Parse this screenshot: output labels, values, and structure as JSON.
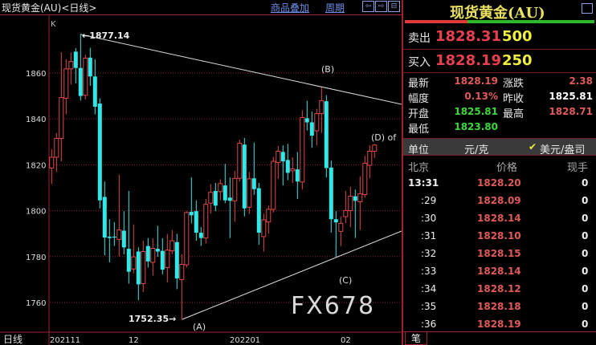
{
  "header": {
    "title": "现货黄金(AU)<日线>",
    "overlay_link": "商品叠加",
    "period_link": "周期",
    "nav_buttons": [
      "⇦",
      "⇨",
      "⊟"
    ]
  },
  "chart": {
    "indicator_label": "K",
    "period_label": "日线",
    "high_label": "1877.14",
    "low_label": "1752.35",
    "wave_labels": [
      "(A)",
      "(B)",
      "(C)",
      "(D) of"
    ],
    "y_ticks": [
      "1860",
      "1840",
      "1820",
      "1800",
      "1780",
      "1760"
    ],
    "x_ticks": [
      "202111",
      "12",
      "202201",
      "02"
    ]
  },
  "chart_data": {
    "type": "candlestick",
    "ylim": [
      1745,
      1885
    ],
    "y_ticks": [
      1860,
      1840,
      1820,
      1800,
      1780,
      1760
    ],
    "x_ticks": [
      "202111",
      "12",
      "202201",
      "02"
    ],
    "grid": true,
    "colors": {
      "up": "#e04848",
      "down": "#30e8e8"
    },
    "ohlc": [
      [
        1818.6,
        1826.8,
        1811.6,
        1823.3
      ],
      [
        1823.3,
        1833.8,
        1817,
        1831.5
      ],
      [
        1831.5,
        1869,
        1821.5,
        1849.3
      ],
      [
        1849,
        1866,
        1842,
        1861.8
      ],
      [
        1861.8,
        1869,
        1855,
        1865
      ],
      [
        1869.3,
        1870.8,
        1855.5,
        1862.2
      ],
      [
        1862.2,
        1877.14,
        1848,
        1850
      ],
      [
        1850.3,
        1868,
        1848.5,
        1866.5
      ],
      [
        1866.7,
        1871,
        1854.4,
        1858.5
      ],
      [
        1858.5,
        1866,
        1842,
        1845.3
      ],
      [
        1846.7,
        1849,
        1801,
        1804.5
      ],
      [
        1806,
        1812.7,
        1780.5,
        1788.3
      ],
      [
        1788.7,
        1796.3,
        1777.5,
        1788.1
      ],
      [
        1788.7,
        1795,
        1784.6,
        1788.3
      ],
      [
        1787.5,
        1815.7,
        1780,
        1791.6
      ],
      [
        1791.3,
        1799.8,
        1781,
        1784
      ],
      [
        1783.4,
        1808.6,
        1768.2,
        1773.4
      ],
      [
        1774.6,
        1794,
        1772.8,
        1779.9
      ],
      [
        1782.2,
        1784,
        1761,
        1767.9
      ],
      [
        1768.2,
        1786.9,
        1764.6,
        1782.2
      ],
      [
        1784.6,
        1788.1,
        1775.2,
        1777.9
      ],
      [
        1777.5,
        1788,
        1771.7,
        1783.6
      ],
      [
        1783.4,
        1793.4,
        1779.9,
        1782.2
      ],
      [
        1782.5,
        1788,
        1772.3,
        1774.3
      ],
      [
        1775.2,
        1789.9,
        1768.8,
        1782.8
      ],
      [
        1782.5,
        1791.6,
        1781.1,
        1786.9
      ],
      [
        1786.3,
        1789.9,
        1765.8,
        1770.5
      ],
      [
        1770,
        1781,
        1752.35,
        1776.6
      ],
      [
        1776.4,
        1799.8,
        1775.2,
        1799.2
      ],
      [
        1799.5,
        1814.5,
        1794.5,
        1798
      ],
      [
        1799.8,
        1804.5,
        1786.9,
        1790.4
      ],
      [
        1790.4,
        1792.8,
        1784.6,
        1788.1
      ],
      [
        1788.1,
        1805.1,
        1785.7,
        1802.8
      ],
      [
        1803.3,
        1811.6,
        1798.7,
        1808
      ],
      [
        1808.6,
        1812.1,
        1799.8,
        1802.2
      ],
      [
        1808.3,
        1813.7,
        1804.5,
        1811.8
      ],
      [
        1811,
        1820.4,
        1803.3,
        1804.5
      ],
      [
        1805.7,
        1814.5,
        1788.1,
        1804.3
      ],
      [
        1804.3,
        1817.4,
        1795.1,
        1814.1
      ],
      [
        1814.1,
        1830.9,
        1812.7,
        1829.4
      ],
      [
        1828.8,
        1831.7,
        1797.5,
        1801
      ],
      [
        1801.5,
        1816.8,
        1798.5,
        1813.9
      ],
      [
        1814.1,
        1829.7,
        1806.9,
        1809.4
      ],
      [
        1809.8,
        1812.1,
        1785.2,
        1790.4
      ],
      [
        1788.7,
        1798.7,
        1782.2,
        1796
      ],
      [
        1795.1,
        1802.2,
        1790,
        1800.6
      ],
      [
        1800.6,
        1823.5,
        1799.2,
        1821.5
      ],
      [
        1821,
        1828.2,
        1813.9,
        1825.9
      ],
      [
        1825.6,
        1828.5,
        1811,
        1821.5
      ],
      [
        1822.1,
        1829.1,
        1813.3,
        1816.5
      ],
      [
        1817.4,
        1823.3,
        1812.1,
        1818.2
      ],
      [
        1818,
        1825.6,
        1805.1,
        1812.7
      ],
      [
        1812.5,
        1843.8,
        1809.2,
        1840.6
      ],
      [
        1840.3,
        1847.9,
        1835,
        1838.5
      ],
      [
        1838.5,
        1843.2,
        1827.4,
        1832.7
      ],
      [
        1834.8,
        1844.4,
        1828.5,
        1842.3
      ],
      [
        1842.3,
        1853.8,
        1833.9,
        1847.9
      ],
      [
        1847.7,
        1850.3,
        1814.5,
        1818.6
      ],
      [
        1818.8,
        1821.9,
        1790.4,
        1796.3
      ],
      [
        1796.3,
        1799.8,
        1779.9,
        1794.9
      ],
      [
        1791,
        1797.5,
        1784.6,
        1794.5
      ],
      [
        1797.4,
        1808.6,
        1794.5,
        1800.1
      ],
      [
        1800,
        1810.4,
        1792.8,
        1806.3
      ],
      [
        1806.3,
        1809.2,
        1788.1,
        1804.3
      ],
      [
        1803.9,
        1815,
        1791.6,
        1807.4
      ],
      [
        1807,
        1823.9,
        1805.7,
        1820.7
      ],
      [
        1819.8,
        1828.5,
        1814.1,
        1825.9
      ],
      [
        1825.9,
        1829.1,
        1823,
        1828.6
      ]
    ]
  },
  "quote": {
    "title": "现货黄金(AU)",
    "sell_label": "卖出",
    "sell_price": "1828.31",
    "sell_vol": "500",
    "buy_label": "买入",
    "buy_price": "1828.19",
    "buy_vol": "250",
    "stats": [
      {
        "label": "最新",
        "value": "1828.19",
        "color": "#e05a5a"
      },
      {
        "label": "涨跌",
        "value": "2.38",
        "color": "#e05a5a"
      },
      {
        "label": "幅度",
        "value": "0.13%",
        "color": "#e05a5a"
      },
      {
        "label": "昨收",
        "value": "1825.81",
        "color": "#ffffff"
      },
      {
        "label": "开盘",
        "value": "1825.81",
        "color": "#3ad83a"
      },
      {
        "label": "最高",
        "value": "1828.71",
        "color": "#e05a5a"
      },
      {
        "label": "最低",
        "value": "1823.80",
        "color": "#3ad83a"
      }
    ],
    "unit_label": "单位",
    "unit_option1": "元/克",
    "unit_option2": "美元/盎司",
    "bid_ratio": 0.33
  },
  "ticks": {
    "headers": [
      "北京",
      "价格",
      "现手"
    ],
    "rows": [
      [
        "13:31",
        "1828.20",
        "0"
      ],
      [
        ":29",
        "1828.09",
        "0"
      ],
      [
        ":30",
        "1828.14",
        "0"
      ],
      [
        ":31",
        "1828.10",
        "0"
      ],
      [
        ":32",
        "1828.15",
        "0"
      ],
      [
        ":33",
        "1828.14",
        "0"
      ],
      [
        ":34",
        "1828.12",
        "0"
      ],
      [
        ":35",
        "1828.18",
        "0"
      ],
      [
        ":36",
        "1828.19",
        "0"
      ]
    ],
    "tab": "笔"
  },
  "watermark": "FX678"
}
